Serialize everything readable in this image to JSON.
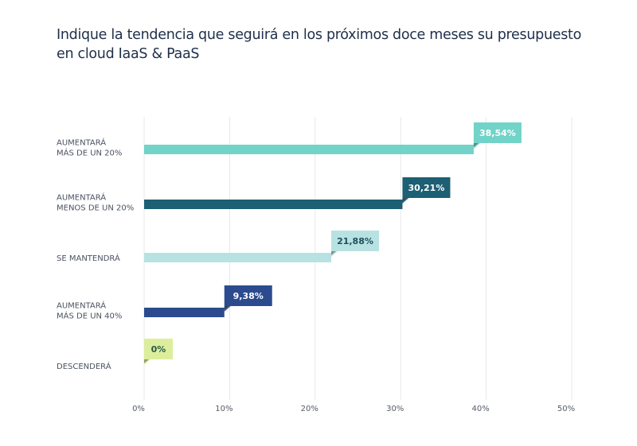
{
  "chart_data": {
    "type": "bar",
    "orientation": "horizontal",
    "title": "Indique la tendencia que seguirá en los próximos doce meses su presupuesto en cloud IaaS & PaaS",
    "xlabel": "",
    "ylabel": "",
    "xlim": [
      0,
      50
    ],
    "grid": true,
    "legend": "none",
    "x_ticks": [
      "0%",
      "10%",
      "20%",
      "30%",
      "40%",
      "50%"
    ],
    "categories": [
      [
        "AUMENTARÁ",
        "MÁS DE UN 20%"
      ],
      [
        "AUMENTARÁ",
        "MENOS DE UN 20%"
      ],
      [
        "SE MANTENDRÁ"
      ],
      [
        "AUMENTARÁ",
        "MÁS DE UN 40%"
      ],
      [
        "DESCENDERÁ"
      ]
    ],
    "values": [
      38.54,
      30.21,
      21.88,
      9.38,
      0
    ],
    "data_labels": [
      "38,54%",
      "30,21%",
      "21,88%",
      "9,38%",
      "0%"
    ],
    "colors": [
      "#72d3c8",
      "#1d5f73",
      "#b8e2e1",
      "#2c4b8e",
      "#dcee9c"
    ],
    "label_text_colors": [
      "#ffffff",
      "#ffffff",
      "#1d4f5f",
      "#ffffff",
      "#2a5a4a"
    ]
  }
}
